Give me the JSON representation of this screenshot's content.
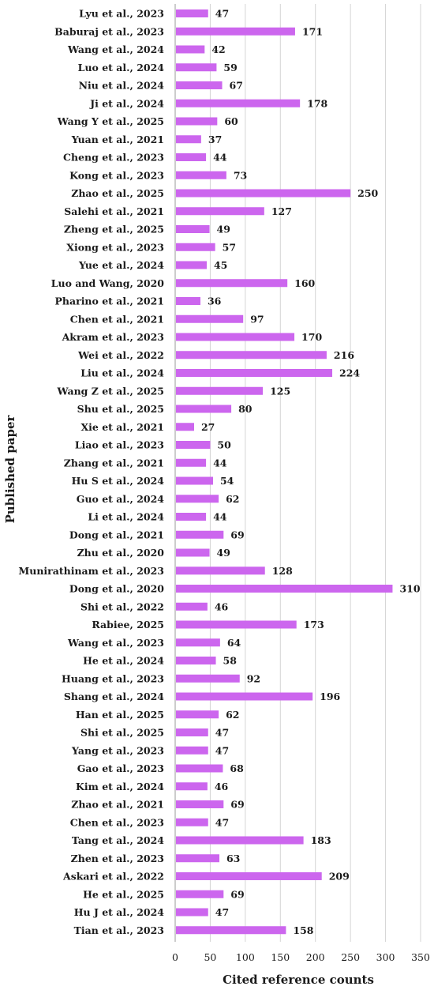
{
  "chart_data": {
    "type": "bar",
    "orientation": "horizontal",
    "xlabel": "Cited reference counts",
    "ylabel": "Published paper",
    "xlim": [
      0,
      350
    ],
    "xticks": [
      0,
      50,
      100,
      150,
      200,
      250,
      300,
      350
    ],
    "grid": "vertical",
    "legend": "none",
    "bar_color": "#cc66ee",
    "categories": [
      "Lyu et al., 2023",
      "Baburaj et al., 2023",
      "Wang et al., 2024",
      "Luo et al., 2024",
      "Niu et al., 2024",
      "Ji et al., 2024",
      "Wang Y et al., 2025",
      "Yuan et al., 2021",
      "Cheng et al., 2023",
      "Kong et al., 2023",
      "Zhao et al., 2025",
      "Salehi et al., 2021",
      "Zheng et al., 2025",
      "Xiong et al., 2023",
      "Yue et al., 2024",
      "Luo and Wang, 2020",
      "Pharino et al., 2021",
      "Chen et al., 2021",
      "Akram et al., 2023",
      "Wei et al., 2022",
      "Liu et al., 2024",
      "Wang Z et al., 2025",
      "Shu et al., 2025",
      "Xie et al., 2021",
      "Liao et al., 2023",
      "Zhang et al., 2021",
      "Hu S et al., 2024",
      "Guo et al., 2024",
      "Li et al., 2024",
      "Dong et al., 2021",
      "Zhu et al., 2020",
      "Munirathinam et al., 2023",
      "Dong et al., 2020",
      "Shi et al., 2022",
      "Rabiee, 2025",
      "Wang et al., 2023",
      "He et al., 2024",
      "Huang et al., 2023",
      "Shang et al., 2024",
      "Han et al., 2025",
      "Shi et al., 2025",
      "Yang et al., 2023",
      "Gao et al., 2023",
      "Kim et al., 2024",
      "Zhao et al., 2021",
      "Chen et al., 2023",
      "Tang et al., 2024",
      "Zhen et al., 2023",
      "Askari et al., 2022",
      "He et al., 2025",
      "Hu J et al., 2024",
      "Tian et al., 2023"
    ],
    "values": [
      47,
      171,
      42,
      59,
      67,
      178,
      60,
      37,
      44,
      73,
      250,
      127,
      49,
      57,
      45,
      160,
      36,
      97,
      170,
      216,
      224,
      125,
      80,
      27,
      50,
      44,
      54,
      62,
      44,
      69,
      49,
      128,
      310,
      46,
      173,
      64,
      58,
      92,
      196,
      62,
      47,
      47,
      68,
      46,
      69,
      47,
      183,
      63,
      209,
      69,
      47,
      158
    ]
  }
}
